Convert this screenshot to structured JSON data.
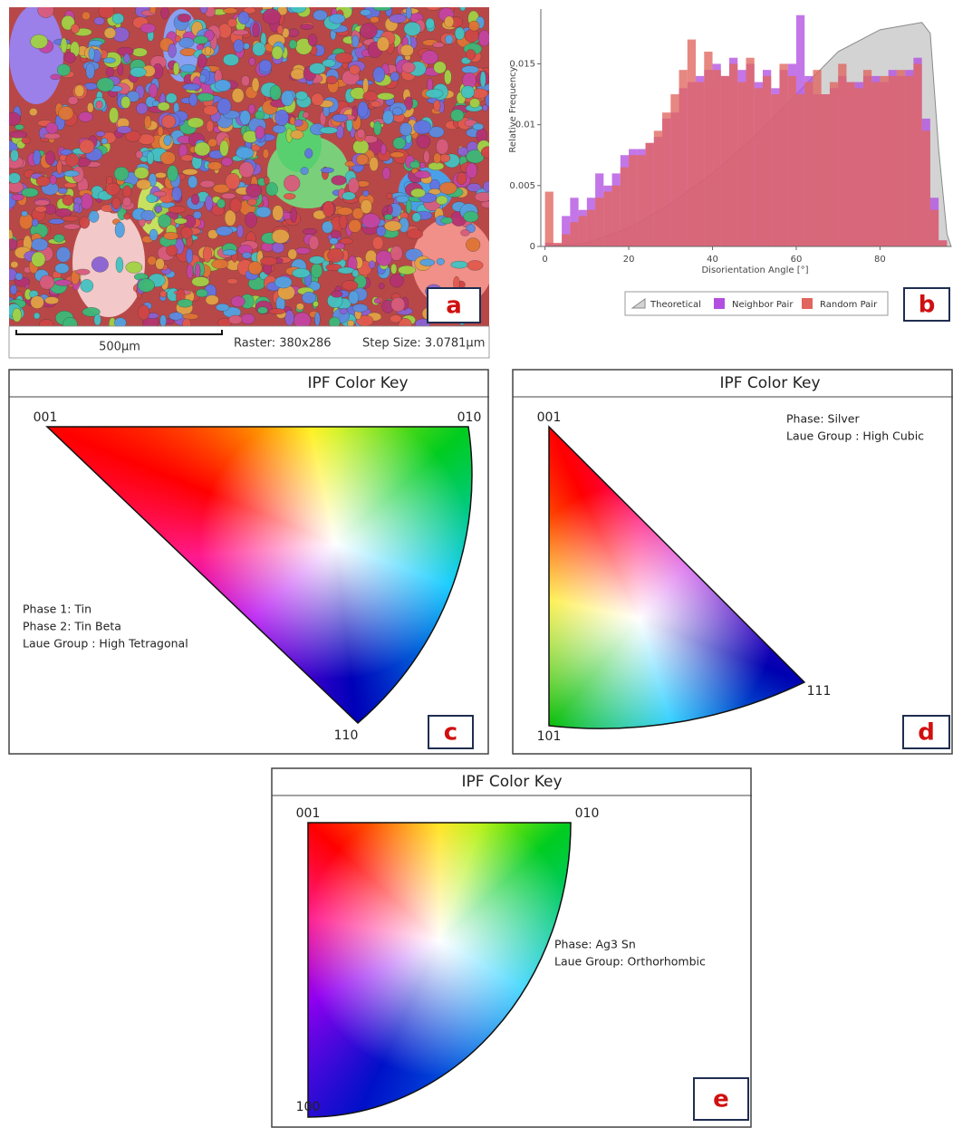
{
  "panel_a": {
    "scale_bar": "500μm",
    "raster": "Raster: 380x286",
    "step_size": "Step Size: 3.0781μm",
    "label": "a"
  },
  "chart_data": {
    "type": "histogram",
    "label": "b",
    "x_label": "Disorientation Angle [°]",
    "y_label": "Relative Frequency",
    "xlim": [
      -1,
      97
    ],
    "ylim": [
      0,
      0.0195
    ],
    "xticks": [
      0,
      20,
      40,
      60,
      80
    ],
    "yticks": [
      0,
      0.005,
      0.01,
      0.015
    ],
    "bins": [
      0,
      2,
      4,
      6,
      8,
      10,
      12,
      14,
      16,
      18,
      20,
      22,
      24,
      26,
      28,
      30,
      32,
      34,
      36,
      38,
      40,
      42,
      44,
      46,
      48,
      50,
      52,
      54,
      56,
      58,
      60,
      62,
      64,
      66,
      68,
      70,
      72,
      74,
      76,
      78,
      80,
      82,
      84,
      86,
      88,
      90,
      92,
      94,
      96
    ],
    "series": [
      {
        "name": "Theoretical",
        "type": "area",
        "color": "#d3d3d3",
        "x": [
          0,
          10,
          20,
          30,
          40,
          50,
          60,
          70,
          80,
          90,
          92,
          94,
          96,
          97
        ],
        "values": [
          0,
          0.0003,
          0.0015,
          0.0035,
          0.006,
          0.009,
          0.0125,
          0.016,
          0.0178,
          0.0184,
          0.0175,
          0.008,
          0.001,
          0
        ]
      },
      {
        "name": "Neighbor Pair",
        "color": "#b24fe0",
        "values": [
          0.0003,
          0.0002,
          0.0025,
          0.004,
          0.003,
          0.004,
          0.006,
          0.005,
          0.006,
          0.0075,
          0.008,
          0.008,
          0.0085,
          0.009,
          0.0105,
          0.011,
          0.013,
          0.0135,
          0.014,
          0.0145,
          0.015,
          0.014,
          0.0155,
          0.0145,
          0.015,
          0.0135,
          0.0145,
          0.013,
          0.0145,
          0.015,
          0.019,
          0.014,
          0.0125,
          0.0125,
          0.013,
          0.014,
          0.0135,
          0.0135,
          0.014,
          0.014,
          0.0135,
          0.0145,
          0.014,
          0.0145,
          0.0155,
          0.0105,
          0.004,
          0.0005
        ]
      },
      {
        "name": "Random Pair",
        "color": "#e0655e",
        "values": [
          0.0045,
          0.0003,
          0.001,
          0.002,
          0.0025,
          0.003,
          0.004,
          0.0045,
          0.005,
          0.0065,
          0.0075,
          0.0075,
          0.0085,
          0.0095,
          0.011,
          0.0125,
          0.0145,
          0.017,
          0.0135,
          0.016,
          0.0145,
          0.014,
          0.015,
          0.0135,
          0.0155,
          0.013,
          0.014,
          0.0125,
          0.015,
          0.014,
          0.0125,
          0.0135,
          0.0145,
          0.0125,
          0.0135,
          0.015,
          0.0135,
          0.013,
          0.0145,
          0.0135,
          0.014,
          0.014,
          0.0145,
          0.014,
          0.015,
          0.0095,
          0.003,
          0.0005
        ]
      }
    ]
  },
  "ipf_keys": [
    {
      "title": "IPF Color Key",
      "corners": [
        "001",
        "010",
        "110"
      ],
      "notes": [
        "Phase 1: Tin",
        "Phase 2: Tin Beta",
        "Laue Group : High Tetragonal"
      ],
      "label": "c"
    },
    {
      "title": "IPF Color Key",
      "corners": [
        "001",
        "101",
        "111"
      ],
      "notes": [
        "Phase: Silver",
        "Laue Group : High Cubic"
      ],
      "label": "d"
    },
    {
      "title": "IPF Color Key",
      "corners": [
        "001",
        "010",
        "100"
      ],
      "notes": [
        "Phase: Ag3 Sn",
        "Laue Group: Orthorhombic"
      ],
      "label": "e"
    }
  ]
}
